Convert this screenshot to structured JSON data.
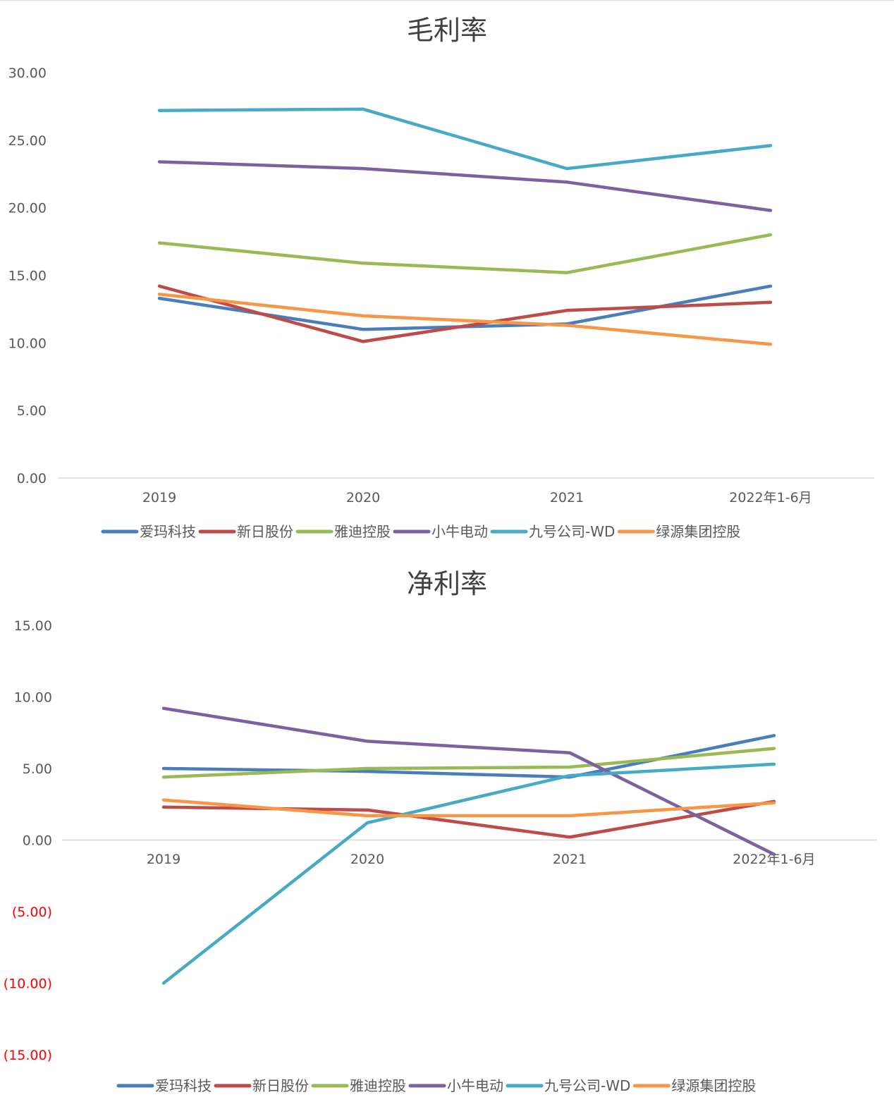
{
  "colors": {
    "爱玛科技": "#4a7ebb",
    "新日股份": "#be4b48",
    "雅迪控股": "#98b954",
    "小牛电动": "#7d60a0",
    "九号公司-WD": "#46aac5",
    "绿源集团控股": "#f79646",
    "negative_label": "#ff0000",
    "axis_line": "#d9d9d9",
    "text": "#595959"
  },
  "chart_data": [
    {
      "type": "line",
      "title": "毛利率",
      "categories": [
        "2019",
        "2020",
        "2021",
        "2022年1-6月"
      ],
      "ylim": [
        0,
        30
      ],
      "yticks": [
        0,
        5,
        10,
        15,
        20,
        25,
        30
      ],
      "ytick_labels": [
        "0.00",
        "5.00",
        "10.00",
        "15.00",
        "20.00",
        "25.00",
        "30.00"
      ],
      "grid": false,
      "legend": "bottom",
      "series": [
        {
          "name": "爱玛科技",
          "values": [
            13.3,
            11.0,
            11.4,
            14.2
          ]
        },
        {
          "name": "新日股份",
          "values": [
            14.2,
            10.1,
            12.4,
            13.0
          ]
        },
        {
          "name": "雅迪控股",
          "values": [
            17.4,
            15.9,
            15.2,
            18.0
          ]
        },
        {
          "name": "小牛电动",
          "values": [
            23.4,
            22.9,
            21.9,
            19.8
          ]
        },
        {
          "name": "九号公司-WD",
          "values": [
            27.2,
            27.3,
            22.9,
            24.6
          ]
        },
        {
          "name": "绿源集团控股",
          "values": [
            13.6,
            12.0,
            11.3,
            9.9
          ]
        }
      ]
    },
    {
      "type": "line",
      "title": "净利率",
      "categories": [
        "2019",
        "2020",
        "2021",
        "2022年1-6月"
      ],
      "ylim": [
        -15,
        15
      ],
      "yticks": [
        -15,
        -10,
        -5,
        0,
        5,
        10,
        15
      ],
      "ytick_labels": [
        "(15.00)",
        "(10.00)",
        "(5.00)",
        "0.00",
        "5.00",
        "10.00",
        "15.00"
      ],
      "grid": false,
      "legend": "bottom",
      "series": [
        {
          "name": "爱玛科技",
          "values": [
            5.0,
            4.8,
            4.4,
            7.3
          ]
        },
        {
          "name": "新日股份",
          "values": [
            2.3,
            2.1,
            0.2,
            2.7
          ]
        },
        {
          "name": "雅迪控股",
          "values": [
            4.4,
            5.0,
            5.1,
            6.4
          ]
        },
        {
          "name": "小牛电动",
          "values": [
            9.2,
            6.9,
            6.1,
            -1.0
          ]
        },
        {
          "name": "九号公司-WD",
          "values": [
            -10.0,
            1.2,
            4.5,
            5.3
          ]
        },
        {
          "name": "绿源集团控股",
          "values": [
            2.8,
            1.7,
            1.7,
            2.6
          ]
        }
      ]
    }
  ]
}
